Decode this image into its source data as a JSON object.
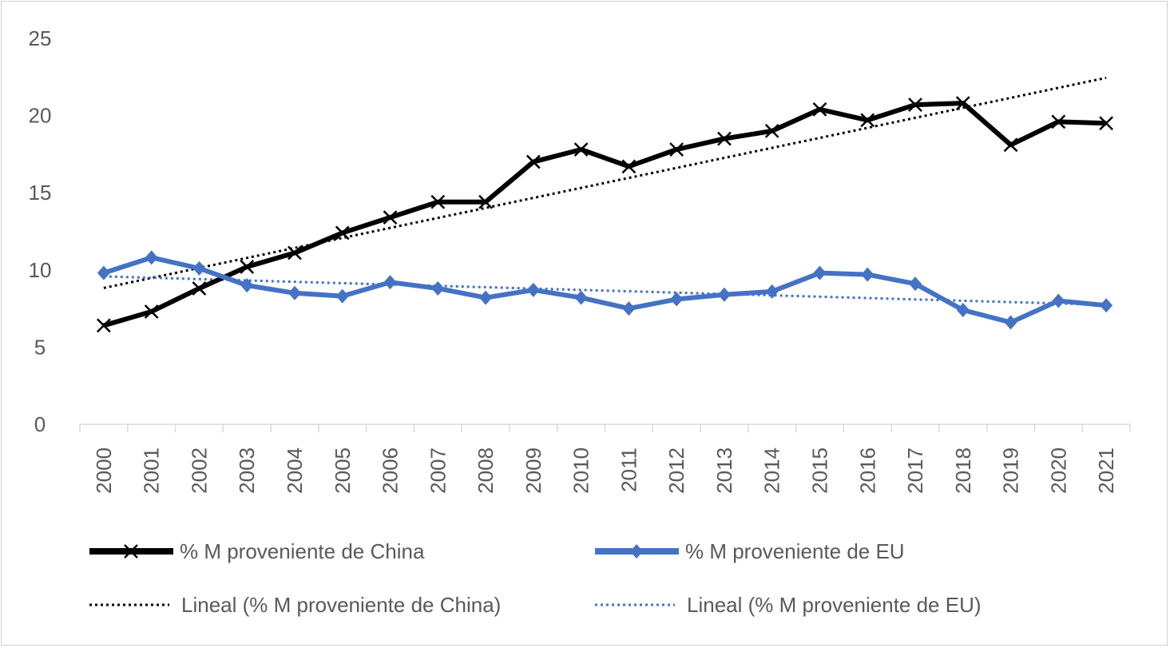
{
  "chart_data": {
    "type": "line",
    "title": "",
    "xlabel": "",
    "ylabel": "",
    "ylim": [
      0,
      25
    ],
    "yticks": [
      "0",
      "5",
      "10",
      "15",
      "20",
      "25"
    ],
    "categories": [
      "2000",
      "2001",
      "2002",
      "2003",
      "2004",
      "2005",
      "2006",
      "2007",
      "2008",
      "2009",
      "2010",
      "2011",
      "2012",
      "2013",
      "2014",
      "2015",
      "2016",
      "2017",
      "2018",
      "2019",
      "2020",
      "2021"
    ],
    "series": [
      {
        "name": "% M proveniente de China",
        "color": "#000000",
        "marker": "x",
        "values": [
          6.4,
          7.3,
          8.8,
          10.2,
          11.1,
          12.4,
          13.4,
          14.4,
          14.4,
          17.0,
          17.8,
          16.7,
          17.8,
          18.5,
          19.0,
          20.4,
          19.7,
          20.7,
          20.8,
          18.1,
          19.6,
          19.5
        ]
      },
      {
        "name": "% M proveniente de EU",
        "color": "#4472C4",
        "marker": "diamond",
        "values": [
          9.8,
          10.8,
          10.1,
          9.0,
          8.5,
          8.3,
          9.2,
          8.8,
          8.2,
          8.7,
          8.2,
          7.5,
          8.1,
          8.4,
          8.6,
          9.8,
          9.7,
          9.1,
          7.4,
          6.6,
          8.0,
          7.7
        ]
      }
    ],
    "trendlines": [
      {
        "name": "Lineal (% M proveniente de China)",
        "color": "#000000",
        "of": 0
      },
      {
        "name": "Lineal (% M proveniente de EU)",
        "color": "#4472C4",
        "of": 1
      }
    ],
    "grid": false,
    "legend": "bottom"
  }
}
